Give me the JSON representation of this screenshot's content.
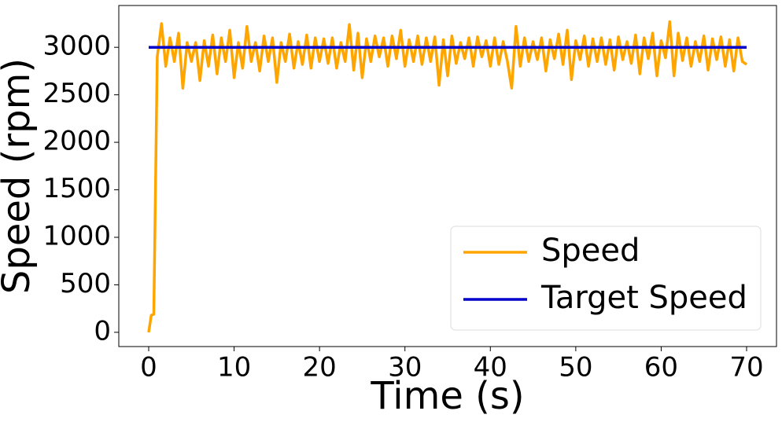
{
  "chart_data": {
    "type": "line",
    "xlabel": "Time (s)",
    "ylabel": "Speed (rpm)",
    "xlim": [
      -3.5,
      73.5
    ],
    "ylim": [
      -150,
      3440
    ],
    "xticks": [
      0,
      10,
      20,
      30,
      40,
      50,
      60,
      70
    ],
    "yticks": [
      0,
      500,
      1000,
      1500,
      2000,
      2500,
      3000
    ],
    "legend": "lower right",
    "series": [
      {
        "name": "Speed",
        "color": "#ffa500",
        "x": [
          0,
          0.3,
          0.6,
          1.0,
          1.5,
          2.0,
          2.5,
          3.0,
          3.5,
          4.0,
          4.5,
          5.0,
          5.5,
          6.0,
          6.5,
          7.0,
          7.5,
          8.0,
          8.5,
          9.0,
          9.5,
          10.0,
          10.5,
          11.0,
          11.5,
          12.0,
          12.5,
          13.0,
          13.5,
          14.0,
          14.5,
          15.0,
          15.5,
          16.0,
          16.5,
          17.0,
          17.5,
          18.0,
          18.5,
          19.0,
          19.5,
          20.0,
          20.5,
          21.0,
          21.5,
          22.0,
          22.5,
          23.0,
          23.5,
          24.0,
          24.5,
          25.0,
          25.5,
          26.0,
          26.5,
          27.0,
          27.5,
          28.0,
          28.5,
          29.0,
          29.5,
          30.0,
          30.5,
          31.0,
          31.5,
          32.0,
          32.5,
          33.0,
          33.5,
          34.0,
          34.5,
          35.0,
          35.5,
          36.0,
          36.5,
          37.0,
          37.5,
          38.0,
          38.5,
          39.0,
          39.5,
          40.0,
          40.5,
          41.0,
          41.5,
          42.0,
          42.5,
          43.0,
          43.5,
          44.0,
          44.5,
          45.0,
          45.5,
          46.0,
          46.5,
          47.0,
          47.5,
          48.0,
          48.5,
          49.0,
          49.5,
          50.0,
          50.5,
          51.0,
          51.5,
          52.0,
          52.5,
          53.0,
          53.5,
          54.0,
          54.5,
          55.0,
          55.5,
          56.0,
          56.5,
          57.0,
          57.5,
          58.0,
          58.5,
          59.0,
          59.5,
          60.0,
          60.5,
          61.0,
          61.5,
          62.0,
          62.5,
          63.0,
          63.5,
          64.0,
          64.5,
          65.0,
          65.5,
          66.0,
          66.5,
          67.0,
          67.5,
          68.0,
          68.5,
          69.0,
          69.5,
          70.0
        ],
        "values": [
          0,
          180,
          190,
          2900,
          3250,
          2800,
          3100,
          2850,
          3150,
          2570,
          3050,
          2850,
          3050,
          2650,
          3070,
          2800,
          3130,
          2720,
          3100,
          2850,
          3180,
          2680,
          3050,
          2780,
          3220,
          2850,
          3050,
          2750,
          3120,
          2850,
          3100,
          2630,
          3050,
          2850,
          3140,
          2780,
          3060,
          2820,
          3130,
          2780,
          3100,
          2850,
          3090,
          2830,
          3100,
          2780,
          3050,
          2850,
          3240,
          2760,
          3150,
          2680,
          3090,
          2850,
          3120,
          2900,
          3100,
          2800,
          3120,
          2880,
          3180,
          2800,
          3080,
          2850,
          3120,
          2820,
          3100,
          2850,
          3110,
          2600,
          3080,
          2700,
          3120,
          2830,
          3050,
          2880,
          3100,
          2800,
          3110,
          2900,
          3070,
          2800,
          3100,
          2820,
          3060,
          2850,
          2570,
          3220,
          2800,
          3100,
          2850,
          3060,
          2870,
          3100,
          2750,
          3080,
          2880,
          3140,
          2820,
          3180,
          2660,
          3070,
          2870,
          3120,
          2800,
          3090,
          2850,
          3100,
          2820,
          3080,
          2760,
          3110,
          2870,
          3060,
          2830,
          3130,
          2720,
          3100,
          2880,
          3150,
          2700,
          3070,
          2890,
          3270,
          2700,
          3150,
          2860,
          3100,
          2800,
          3060,
          2850,
          3120,
          2760,
          3090,
          2870,
          3110,
          2800,
          3080,
          2750,
          3100,
          2850,
          2820
        ]
      },
      {
        "name": "Target Speed",
        "color": "#0000cc",
        "x": [
          0,
          70
        ],
        "values": [
          3000,
          3000
        ]
      }
    ]
  }
}
